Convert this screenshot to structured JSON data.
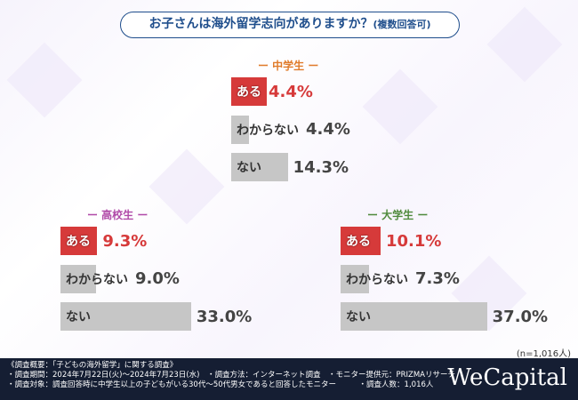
{
  "title": {
    "main": "お子さんは海外留学志向がありますか？",
    "note": "(複数回答可)"
  },
  "colors": {
    "yes": "#d63a3a",
    "other": "#c6c6c6",
    "title": "#1f4e8c"
  },
  "chart_data": {
    "type": "bar",
    "title": "お子さんは海外留学志向がありますか？(複数回答可)",
    "categories": [
      "ある",
      "わからない",
      "ない"
    ],
    "unit": "%",
    "groups": [
      {
        "name": "中学生",
        "color": "#e07b2a",
        "values": [
          4.4,
          4.4,
          14.3
        ],
        "labels": [
          "4.4%",
          "4.4%",
          "14.3%"
        ]
      },
      {
        "name": "高校生",
        "color": "#b04aa8",
        "values": [
          9.3,
          9.0,
          33.0
        ],
        "labels": [
          "9.3%",
          "9.0%",
          "33.0%"
        ]
      },
      {
        "name": "大学生",
        "color": "#4f8a3c",
        "values": [
          10.1,
          7.3,
          37.0
        ],
        "labels": [
          "10.1%",
          "7.3%",
          "37.0%"
        ]
      }
    ]
  },
  "sample": "(n=1,016人)",
  "footer": {
    "lines": [
      "《調査概要：「子どもの海外留学」に関する調査》",
      "・調査期間：2024年7月22日(火)～2024年7月23日(水)　・調査方法：インターネット調査　・モニター提供元：PRIZMAリサーチ",
      "・調査対象：調査回答時に中学生以上の子どもがいる30代～50代男女であると回答したモニター　　　・調査人数：1,016人"
    ],
    "logo": "WeCapital"
  }
}
